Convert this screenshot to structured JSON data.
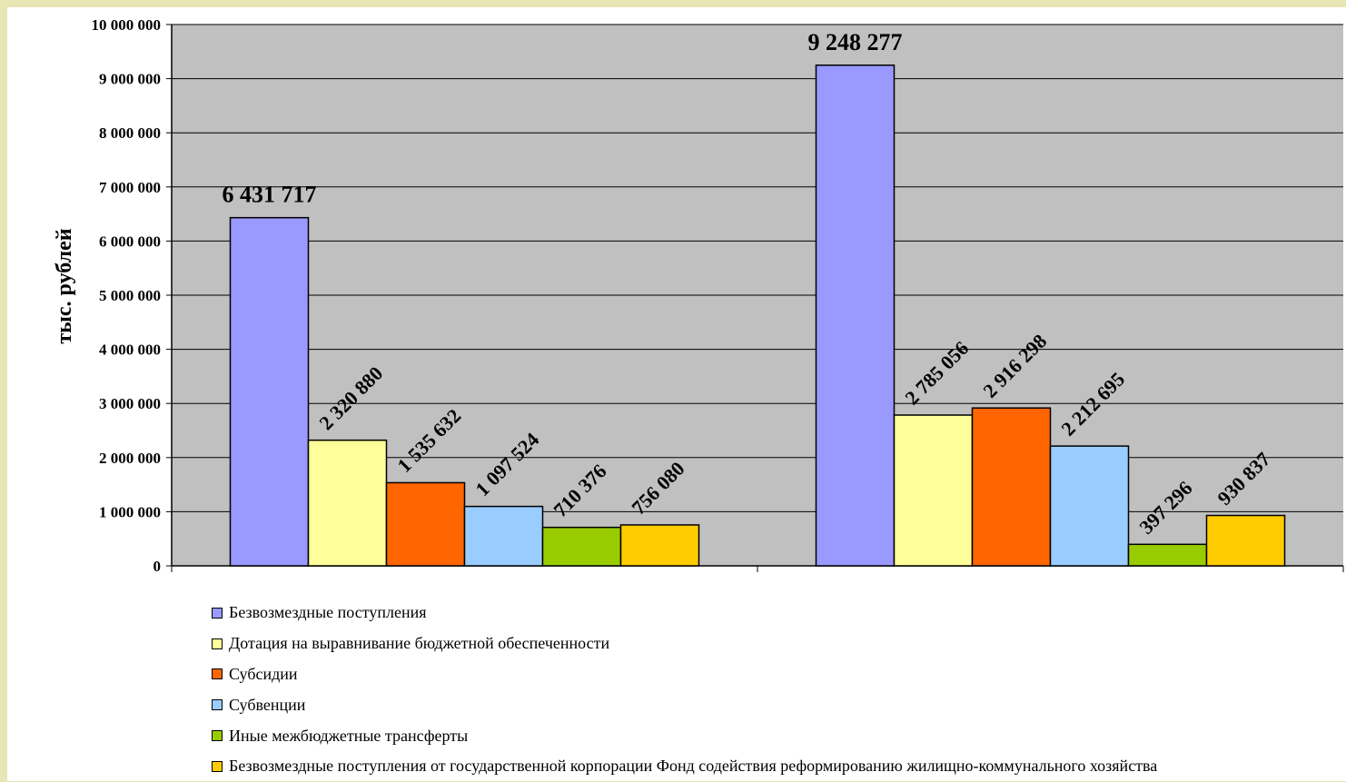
{
  "chart_data": {
    "type": "bar",
    "title": "",
    "xlabel": "",
    "ylabel": "тыс. рублей",
    "ylim": [
      0,
      10000000
    ],
    "yticks": [
      0,
      1000000,
      2000000,
      3000000,
      4000000,
      5000000,
      6000000,
      7000000,
      8000000,
      9000000,
      10000000
    ],
    "ytick_labels": [
      "0",
      "1 000 000",
      "2 000 000",
      "3 000 000",
      "4 000 000",
      "5 000 000",
      "6 000 000",
      "7 000 000",
      "8 000 000",
      "9 000 000",
      "10 000 000"
    ],
    "grid": true,
    "plot_background": "#c0c0c0",
    "legend_position": "bottom",
    "categories": [
      "",
      ""
    ],
    "series": [
      {
        "name": "Безвозмездные поступления",
        "color": "#9999ff",
        "values": [
          6431717,
          9248277
        ],
        "labels": [
          "6 431 717",
          "9 248 277"
        ]
      },
      {
        "name": "Дотация на выравнивание бюджетной обеспеченности",
        "color": "#ffff99",
        "values": [
          2320880,
          2785056
        ],
        "labels": [
          "2 320 880",
          "2 785 056"
        ]
      },
      {
        "name": "Субсидии",
        "color": "#ff6600",
        "values": [
          1535632,
          2916298
        ],
        "labels": [
          "1 535 632",
          "2 916 298"
        ]
      },
      {
        "name": "Субвенции",
        "color": "#99ccff",
        "values": [
          1097524,
          2212695
        ],
        "labels": [
          "1 097 524",
          "2 212 695"
        ]
      },
      {
        "name": "Иные межбюджетные трансферты",
        "color": "#99cc00",
        "values": [
          710376,
          397296
        ],
        "labels": [
          "710 376",
          "397 296"
        ]
      },
      {
        "name": "Безвозмездные поступления от государственной корпорации Фонд содействия реформированию жилищно-коммунального хозяйства",
        "color": "#ffcc00",
        "values": [
          756080,
          930837
        ],
        "labels": [
          "756 080",
          "930 837"
        ]
      }
    ]
  }
}
